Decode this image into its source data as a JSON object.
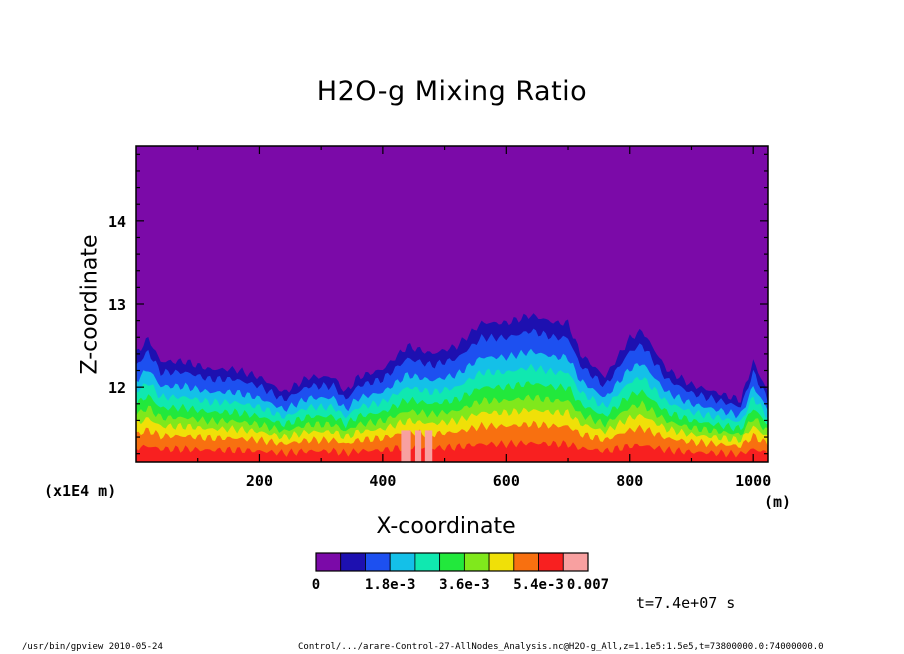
{
  "chart_data": {
    "type": "heatmap",
    "title": "H2O-g Mixing Ratio",
    "xlabel": "X-coordinate",
    "ylabel": "Z-coordinate",
    "x_unit": "(m)",
    "y_unit": "(x1E4 m)",
    "xlim": [
      0,
      1024
    ],
    "ylim": [
      11.1,
      14.9
    ],
    "x_ticks": [
      "200",
      "400",
      "600",
      "800",
      "1000"
    ],
    "x_tick_values": [
      200,
      400,
      600,
      800,
      1000
    ],
    "y_ticks": [
      "12",
      "13",
      "14"
    ],
    "y_tick_values": [
      12,
      13,
      14
    ],
    "colorbar": {
      "colors": [
        "#7b0aa8",
        "#1d10b0",
        "#1d50f0",
        "#14c0e8",
        "#10e8b0",
        "#22e83c",
        "#80e81c",
        "#f0e008",
        "#f87010",
        "#f82020",
        "#f8a0a0"
      ],
      "labels": [
        "0",
        "1.8e-3",
        "3.6e-3",
        "5.4e-3",
        "0.007"
      ],
      "label_positions": [
        0,
        3,
        6,
        9,
        11
      ],
      "range": [
        0,
        0.007
      ]
    },
    "vapor_top_profile": {
      "x": [
        0,
        20,
        40,
        80,
        120,
        160,
        200,
        240,
        280,
        320,
        340,
        360,
        400,
        440,
        480,
        520,
        560,
        600,
        640,
        680,
        700,
        720,
        760,
        800,
        820,
        860,
        900,
        940,
        980,
        1000,
        1024
      ],
      "z": [
        12.5,
        12.7,
        12.4,
        12.4,
        12.3,
        12.3,
        12.2,
        12.0,
        12.2,
        12.2,
        12.0,
        12.2,
        12.3,
        12.6,
        12.5,
        12.6,
        12.9,
        12.9,
        13.0,
        12.9,
        12.9,
        12.5,
        12.2,
        12.7,
        12.8,
        12.3,
        12.1,
        12.0,
        11.9,
        12.4,
        12.0
      ]
    },
    "time_label": "t=7.4e+07 s"
  },
  "footer": {
    "left": "/usr/bin/gpview  2010-05-24",
    "right": "Control/.../arare-Control-27-AllNodes_Analysis.nc@H2O-g_All,z=1.1e5:1.5e5,t=73800000.0:74000000.0"
  }
}
